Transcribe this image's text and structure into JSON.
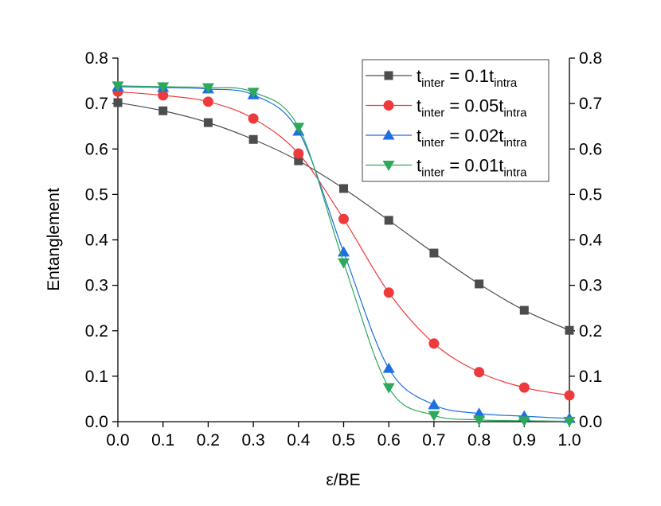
{
  "chart_data": {
    "type": "line",
    "xlabel": "ε/BE",
    "ylabel": "Entanglement",
    "xlim": [
      0,
      1.0
    ],
    "ylim": [
      0,
      0.8
    ],
    "grid": false,
    "legend_placement": "top-right",
    "right_axis_mirrored": true,
    "xticks": [
      "0.0",
      "0.1",
      "0.2",
      "0.3",
      "0.4",
      "0.5",
      "0.6",
      "0.7",
      "0.8",
      "0.9",
      "1.0"
    ],
    "yticks": [
      "0.0",
      "0.1",
      "0.2",
      "0.3",
      "0.4",
      "0.5",
      "0.6",
      "0.7",
      "0.8"
    ],
    "x": [
      0.0,
      0.1,
      0.2,
      0.3,
      0.4,
      0.5,
      0.6,
      0.7,
      0.8,
      0.9,
      1.0
    ],
    "series": [
      {
        "name": "t_inter = 0.1t_intra",
        "color": "#4d4d4d",
        "marker": "square",
        "values": [
          0.702,
          0.684,
          0.658,
          0.621,
          0.574,
          0.513,
          0.443,
          0.371,
          0.303,
          0.245,
          0.201
        ]
      },
      {
        "name": "t_inter = 0.05t_intra",
        "color": "#ee3a3c",
        "marker": "circle",
        "values": [
          0.726,
          0.718,
          0.704,
          0.667,
          0.59,
          0.446,
          0.284,
          0.172,
          0.109,
          0.075,
          0.058
        ]
      },
      {
        "name": "t_inter = 0.02t_intra",
        "color": "#1f6fe0",
        "marker": "triangle-up",
        "values": [
          0.737,
          0.735,
          0.732,
          0.719,
          0.639,
          0.373,
          0.117,
          0.037,
          0.018,
          0.012,
          0.007
        ]
      },
      {
        "name": "t_inter = 0.01t_intra",
        "color": "#2ea85a",
        "marker": "triangle-down",
        "values": [
          0.739,
          0.737,
          0.735,
          0.725,
          0.648,
          0.35,
          0.075,
          0.014,
          0.004,
          0.002,
          0.001
        ]
      }
    ]
  }
}
